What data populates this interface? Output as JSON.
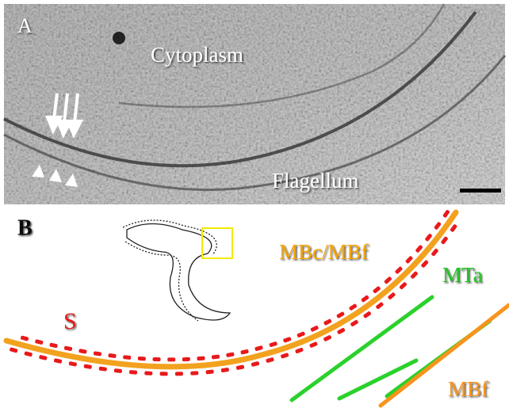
{
  "panel_a": {
    "label": "A",
    "cytoplasm": "Cytoplasm",
    "flagellum": "Flagellum"
  },
  "panel_b": {
    "label": "B",
    "mbc_mbf": "MBc/MBf",
    "mta": "MTa",
    "s": "S",
    "mbf": "MBf"
  }
}
